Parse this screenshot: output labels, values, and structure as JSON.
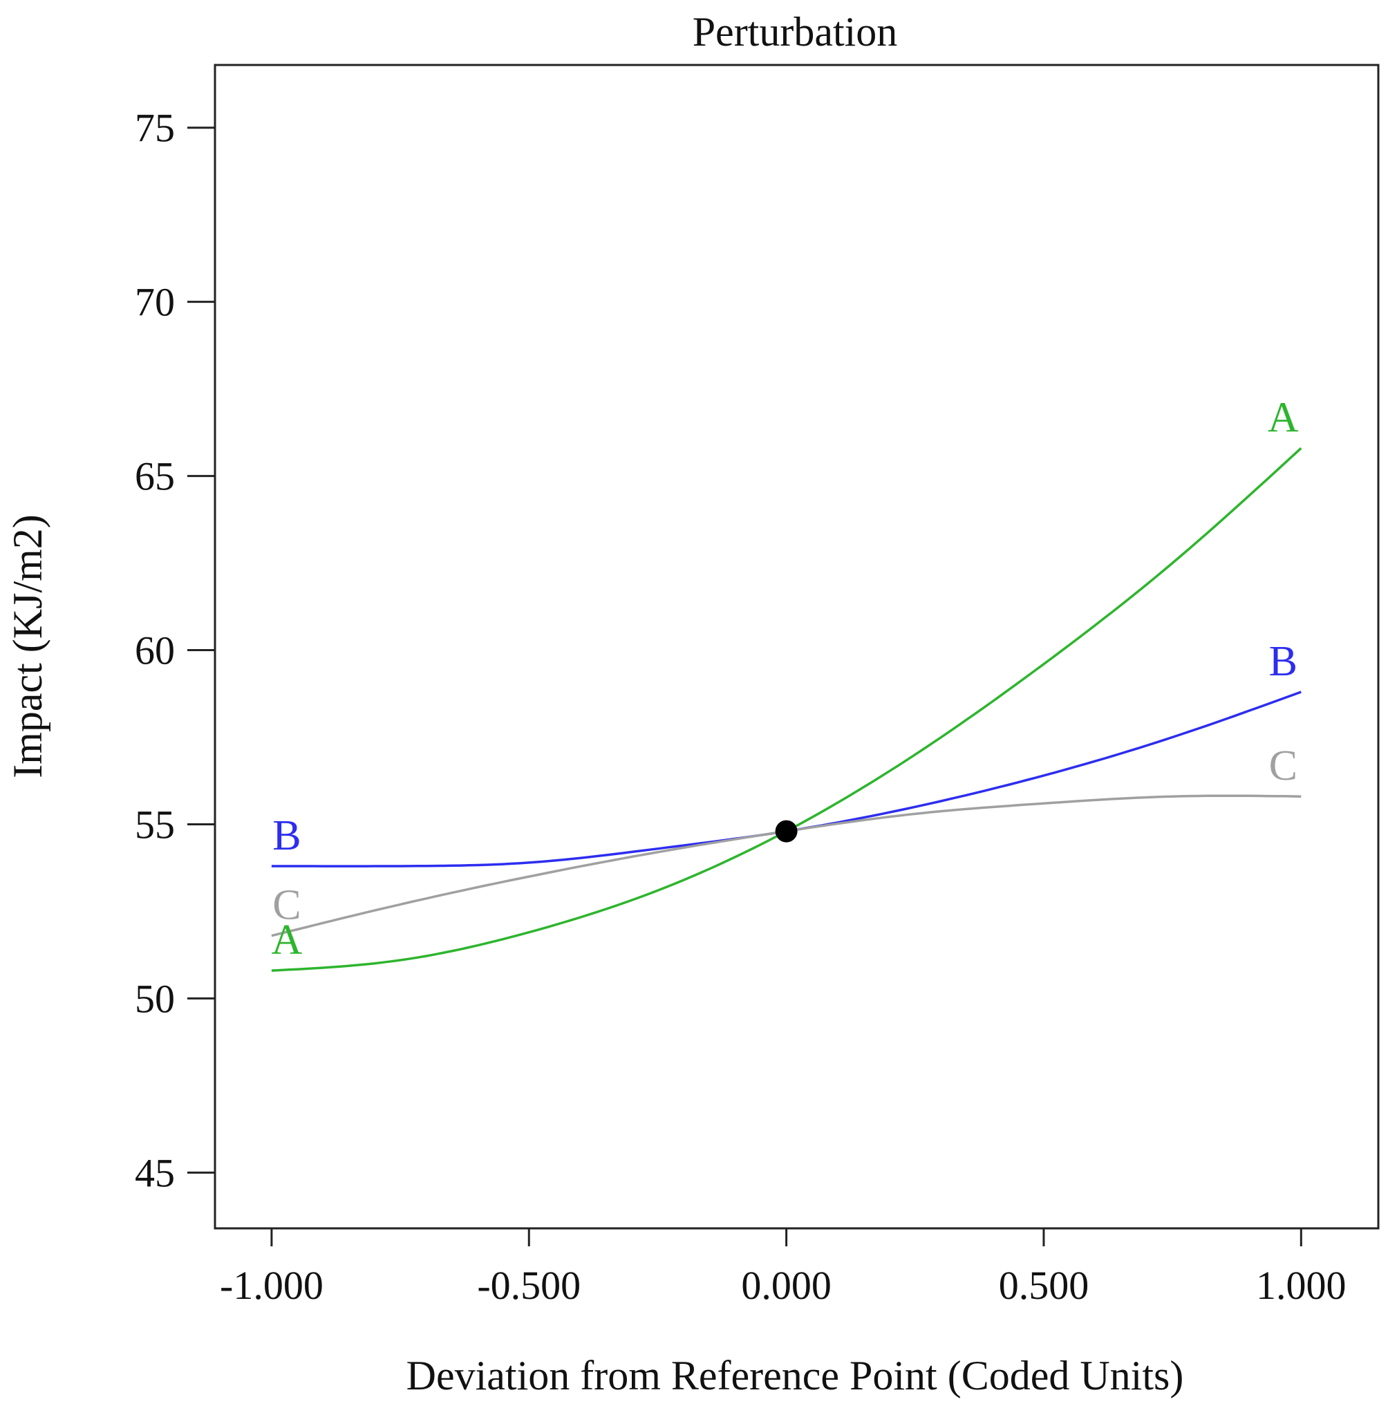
{
  "chart_data": {
    "type": "line",
    "title": "Perturbation",
    "xlabel": "Deviation from Reference Point (Coded Units)",
    "ylabel": "Impact (KJ/m2)",
    "xlim": [
      -1.11,
      1.15
    ],
    "ylim": [
      43.4,
      76.8
    ],
    "x_ticks": [
      "-1.000",
      "-0.500",
      "0.000",
      "0.500",
      "1.000"
    ],
    "y_ticks": [
      "45",
      "50",
      "55",
      "60",
      "65",
      "70",
      "75"
    ],
    "grid": false,
    "legend": "none",
    "reference_point": {
      "x": 0.0,
      "y": 54.8
    },
    "series": [
      {
        "name": "A",
        "color": "#2db52d",
        "x": [
          -1.0,
          -0.75,
          -0.5,
          -0.25,
          0.0,
          0.25,
          0.5,
          0.75,
          1.0
        ],
        "y": [
          50.8,
          51.1,
          51.9,
          53.1,
          54.8,
          57.0,
          59.6,
          62.5,
          65.8
        ]
      },
      {
        "name": "B",
        "color": "#2d2df0",
        "x": [
          -1.0,
          -0.75,
          -0.5,
          -0.25,
          0.0,
          0.25,
          0.5,
          0.75,
          1.0
        ],
        "y": [
          53.8,
          53.8,
          53.9,
          54.3,
          54.8,
          55.5,
          56.4,
          57.5,
          58.8
        ]
      },
      {
        "name": "C",
        "color": "#a0a0a0",
        "x": [
          -1.0,
          -0.75,
          -0.5,
          -0.25,
          0.0,
          0.25,
          0.5,
          0.75,
          1.0
        ],
        "y": [
          51.8,
          52.7,
          53.5,
          54.2,
          54.8,
          55.3,
          55.6,
          55.8,
          55.8
        ]
      }
    ]
  }
}
